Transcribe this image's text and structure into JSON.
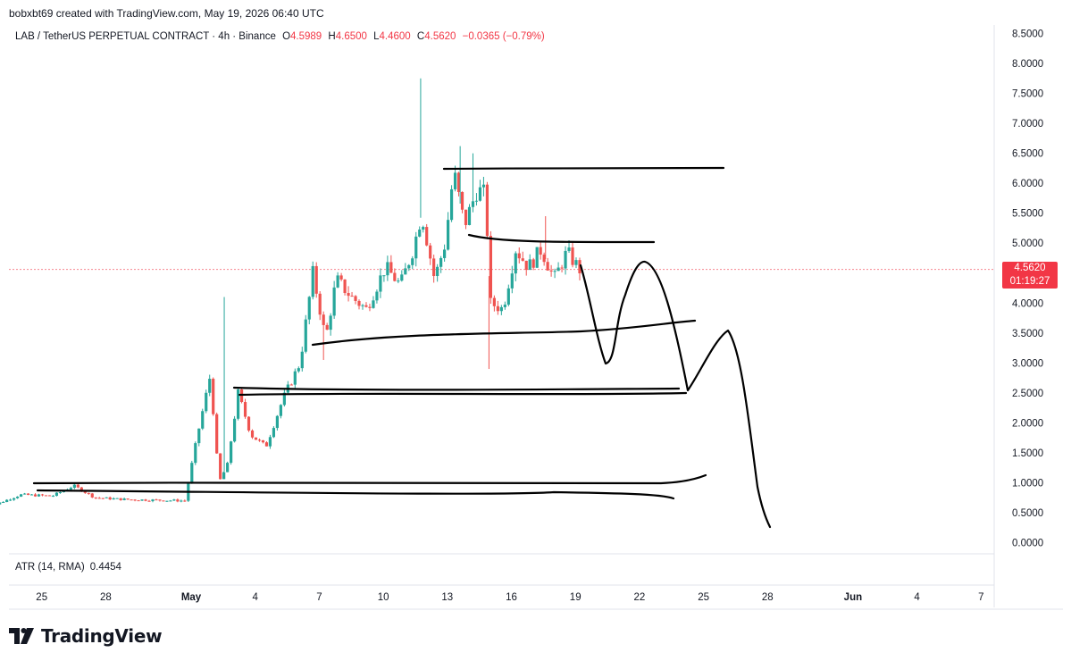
{
  "header": {
    "text": "bobxbt69 created with TradingView.com, May 19, 2026 06:40 UTC"
  },
  "legend": {
    "symbol": "LAB / TetherUS PERPETUAL CONTRACT · 4h · Binance",
    "o_label": "O",
    "o_value": "4.5989",
    "h_label": "H",
    "h_value": "4.6500",
    "l_label": "L",
    "l_value": "4.4600",
    "c_label": "C",
    "c_value": "4.5620",
    "change": "−0.0365 (−0.79%)"
  },
  "atr": {
    "label": "ATR (14, RMA)",
    "value": "0.4454"
  },
  "price_tag": {
    "price": "4.5620",
    "countdown": "01:19:27"
  },
  "brand": {
    "name": "TradingView",
    "logo_icon": "tradingview-logo-icon"
  },
  "colors": {
    "up": "#26a69a",
    "down": "#ef5350",
    "drawing": "#000000",
    "last_price": "#f23645",
    "grid": "#f0f3fa"
  },
  "chart_data": {
    "type": "candlestick",
    "y_axis_ticks": [
      "8.5000",
      "8.0000",
      "7.5000",
      "7.0000",
      "6.5000",
      "6.0000",
      "5.5000",
      "5.0000",
      "4.5000",
      "4.0000",
      "3.5000",
      "3.0000",
      "2.5000",
      "2.0000",
      "1.5000",
      "1.0000",
      "0.5000",
      "0.0000"
    ],
    "ylim": [
      0,
      8.5
    ],
    "x_axis_ticks": [
      {
        "label": "25",
        "day": -6
      },
      {
        "label": "28",
        "day": -3
      },
      {
        "label": "May",
        "day": 1
      },
      {
        "label": "4",
        "day": 4
      },
      {
        "label": "7",
        "day": 7
      },
      {
        "label": "10",
        "day": 10
      },
      {
        "label": "13",
        "day": 13
      },
      {
        "label": "16",
        "day": 16
      },
      {
        "label": "19",
        "day": 19
      },
      {
        "label": "22",
        "day": 22
      },
      {
        "label": "25",
        "day": 25
      },
      {
        "label": "28",
        "day": 28
      },
      {
        "label": "Jun",
        "day": 32
      },
      {
        "label": "4",
        "day": 35
      },
      {
        "label": "7",
        "day": 38
      }
    ],
    "last_price": 4.562,
    "anchors": [
      [
        -8.8,
        0.55
      ],
      [
        -7,
        0.8
      ],
      [
        -5.5,
        0.78
      ],
      [
        -4.5,
        0.95
      ],
      [
        -3.5,
        0.75
      ],
      [
        -2,
        0.72
      ],
      [
        0.7,
        0.7
      ],
      [
        1.3,
        1.8
      ],
      [
        1.9,
        2.8
      ],
      [
        2.3,
        1.0
      ],
      [
        2.7,
        1.3
      ],
      [
        3.2,
        2.5
      ],
      [
        3.8,
        1.8
      ],
      [
        4.5,
        1.6
      ],
      [
        5.3,
        2.4
      ],
      [
        6.1,
        3.0
      ],
      [
        6.7,
        4.5
      ],
      [
        7.3,
        3.4
      ],
      [
        7.8,
        4.4
      ],
      [
        8.5,
        4.1
      ],
      [
        9.2,
        3.9
      ],
      [
        10.1,
        4.6
      ],
      [
        10.8,
        4.3
      ],
      [
        11.4,
        4.9
      ],
      [
        11.8,
        5.5
      ],
      [
        12.4,
        4.4
      ],
      [
        12.9,
        5.0
      ],
      [
        13.3,
        6.2
      ],
      [
        13.8,
        5.3
      ],
      [
        14.4,
        5.9
      ],
      [
        14.8,
        5.8
      ],
      [
        15.0,
        4.0
      ],
      [
        15.6,
        3.9
      ],
      [
        16.2,
        4.9
      ],
      [
        16.8,
        4.6
      ],
      [
        17.4,
        4.9
      ],
      [
        18.0,
        4.4
      ],
      [
        18.6,
        4.85
      ],
      [
        19.2,
        4.56
      ]
    ],
    "spikes": [
      [
        2.55,
        4.1,
        "up"
      ],
      [
        11.75,
        7.75,
        "up"
      ],
      [
        13.6,
        6.62,
        "up"
      ],
      [
        14.2,
        6.5,
        "up"
      ],
      [
        14.95,
        2.9,
        "down"
      ],
      [
        17.6,
        5.45,
        "down"
      ],
      [
        7.2,
        3.05,
        "down"
      ]
    ]
  }
}
